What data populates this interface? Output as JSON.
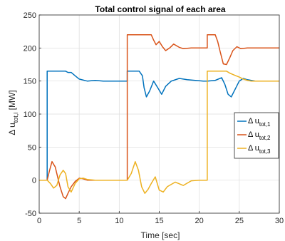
{
  "chart_data": {
    "type": "line",
    "title": "Total control signal of each area",
    "xlabel": "Time [sec]",
    "ylabel": {
      "prefix": "Δ u",
      "sub": "tot,i",
      "suffix": " [MW]"
    },
    "xlim": [
      0,
      30
    ],
    "ylim": [
      -50,
      250
    ],
    "xticks": [
      "0",
      "5",
      "10",
      "15",
      "20",
      "25",
      "30"
    ],
    "yticks": [
      "-50",
      "0",
      "50",
      "100",
      "150",
      "200",
      "250"
    ],
    "grid": true,
    "legend_position": "right-center",
    "series": [
      {
        "name": "Δ u_tot,1",
        "legend_prefix": "Δ u",
        "legend_sub": "tot,1",
        "color": "#0072BD",
        "x": [
          0,
          1.0,
          1.0,
          3.3,
          3.6,
          4.0,
          4.5,
          5.0,
          6.0,
          7.0,
          8.0,
          9.0,
          10.0,
          11.0,
          11.0,
          12.5,
          12.9,
          13.1,
          13.4,
          13.8,
          14.3,
          14.8,
          15.3,
          15.8,
          16.5,
          17.5,
          18.5,
          19.5,
          20.5,
          21.0,
          22.0,
          22.8,
          23.2,
          23.6,
          24.0,
          24.5,
          25.0,
          25.5,
          26.0,
          27.0,
          28.0,
          29.0,
          30.0
        ],
        "y": [
          0,
          0,
          165,
          165,
          163,
          163,
          158,
          153,
          150,
          151,
          150,
          150,
          150,
          150,
          165,
          165,
          158,
          140,
          126,
          135,
          150,
          140,
          130,
          142,
          150,
          154,
          152,
          151,
          150,
          150,
          151,
          155,
          145,
          130,
          126,
          138,
          150,
          154,
          152,
          150,
          150,
          150,
          150
        ]
      },
      {
        "name": "Δ u_tot,2",
        "legend_prefix": "Δ u",
        "legend_sub": "tot,2",
        "color": "#D95319",
        "x": [
          0,
          1.0,
          1.3,
          1.6,
          2.0,
          2.6,
          3.0,
          3.3,
          3.6,
          4.0,
          4.5,
          5.0,
          5.5,
          6.0,
          6.5,
          7.0,
          8.0,
          9.0,
          10.0,
          11.0,
          11.0,
          14.0,
          14.3,
          14.6,
          15.0,
          15.4,
          15.8,
          16.3,
          16.8,
          17.5,
          18.0,
          19.0,
          20.0,
          21.0,
          21.0,
          22.0,
          22.3,
          22.6,
          23.0,
          23.4,
          23.8,
          24.2,
          24.7,
          25.2,
          26.0,
          27.0,
          28.0,
          29.0,
          30.0
        ],
        "y": [
          0,
          0,
          15,
          28,
          20,
          -10,
          -25,
          -28,
          -20,
          -10,
          -2,
          3,
          2,
          0,
          0,
          0,
          0,
          0,
          0,
          0,
          220,
          220,
          212,
          205,
          210,
          202,
          196,
          200,
          206,
          201,
          199,
          200,
          200,
          200,
          220,
          220,
          210,
          195,
          176,
          175,
          185,
          196,
          202,
          199,
          200,
          200,
          200,
          200,
          200
        ]
      },
      {
        "name": "Δ u_tot,3",
        "legend_prefix": "Δ u",
        "legend_sub": "tot,3",
        "color": "#EDB120",
        "x": [
          0,
          1.0,
          1.4,
          1.8,
          2.2,
          2.6,
          3.0,
          3.3,
          3.6,
          4.0,
          4.5,
          5.0,
          5.5,
          6.0,
          7.0,
          8.0,
          9.0,
          10.0,
          11.0,
          11.5,
          12.0,
          12.4,
          12.8,
          13.2,
          13.6,
          14.0,
          14.5,
          15.0,
          15.5,
          16.0,
          17.0,
          18.0,
          19.0,
          20.0,
          21.0,
          21.0,
          23.0,
          23.4,
          23.8,
          24.2,
          24.6,
          25.0,
          25.5,
          26.0,
          26.5,
          27.0,
          28.0,
          29.0,
          30.0
        ],
        "y": [
          0,
          0,
          -5,
          -12,
          -8,
          8,
          15,
          10,
          -10,
          -18,
          -5,
          2,
          3,
          1,
          0,
          0,
          0,
          0,
          0,
          10,
          28,
          15,
          -10,
          -20,
          -14,
          -5,
          5,
          -15,
          -18,
          -10,
          -3,
          -8,
          -1,
          0,
          0,
          165,
          165,
          165,
          162,
          160,
          158,
          156,
          153,
          151,
          150,
          150,
          150,
          150,
          150
        ]
      }
    ]
  }
}
